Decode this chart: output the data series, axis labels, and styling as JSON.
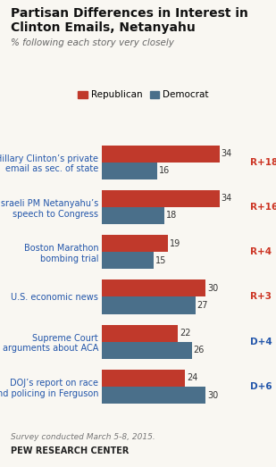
{
  "title_line1": "Partisan Differences in Interest in",
  "title_line2": "Clinton Emails, Netanyahu",
  "subtitle": "% following each story very closely",
  "categories": [
    "Hillary Clinton’s private\nemail as sec. of state",
    "Israeli PM Netanyahu’s\nspeech to Congress",
    "Boston Marathon\nbombing trial",
    "U.S. economic news",
    "Supreme Court\narguments about ACA",
    "DOJ’s report on race\nand policing in Ferguson"
  ],
  "republican_values": [
    34,
    34,
    19,
    30,
    22,
    24
  ],
  "democrat_values": [
    16,
    18,
    15,
    27,
    26,
    30
  ],
  "diff_labels": [
    "R+18",
    "R+16",
    "R+4",
    "R+3",
    "D+4",
    "D+6"
  ],
  "diff_colors": [
    "#cc3322",
    "#cc3322",
    "#cc3322",
    "#cc3322",
    "#2255aa",
    "#2255aa"
  ],
  "republican_color": "#c0392b",
  "democrat_color": "#4a6f8a",
  "bar_height": 0.38,
  "xlim": [
    0,
    40
  ],
  "footnote": "Survey conducted March 5-8, 2015.",
  "source": "PEW RESEARCH CENTER",
  "background_color": "#f9f7f2",
  "label_color": "#2255aa"
}
